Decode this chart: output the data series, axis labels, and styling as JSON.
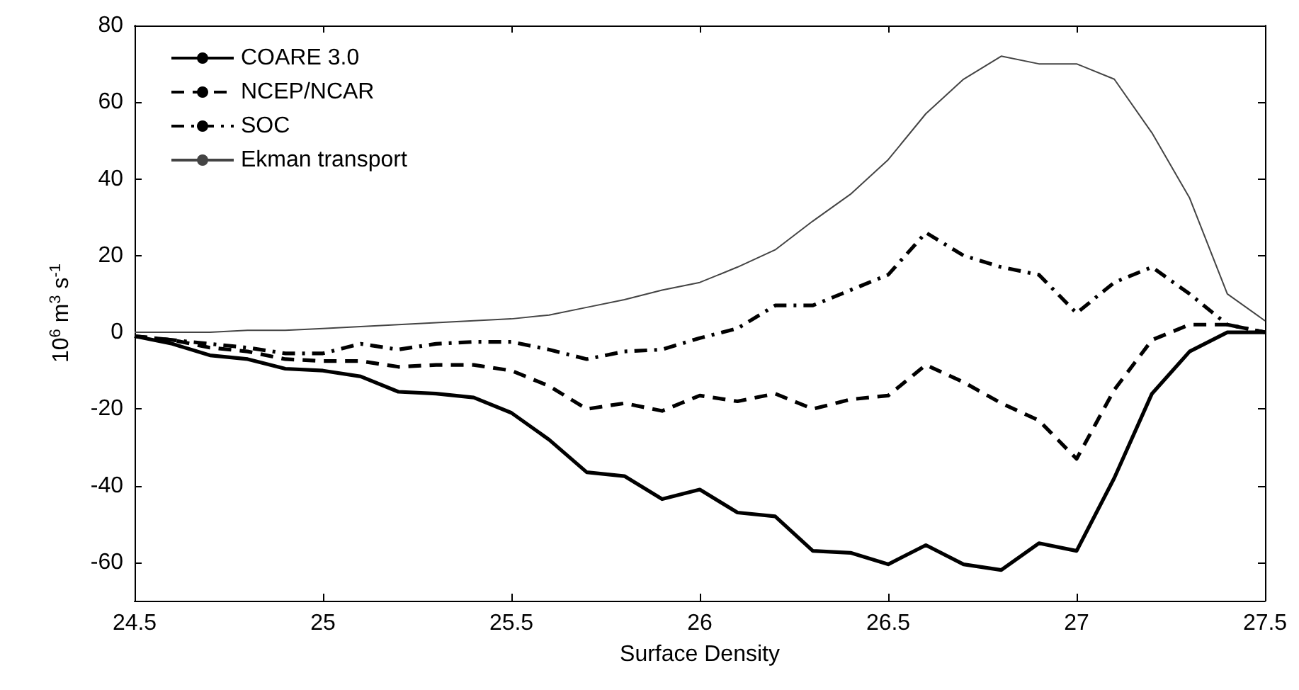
{
  "chart_data": {
    "type": "line",
    "xlabel": "Surface Density",
    "ylabel": "10$^{6}$ m$^{3}$ s$^{-1}$",
    "x": [
      24.5,
      24.6,
      24.7,
      24.8,
      24.9,
      25.0,
      25.1,
      25.2,
      25.3,
      25.4,
      25.5,
      25.6,
      25.7,
      25.8,
      25.9,
      26.0,
      26.1,
      26.2,
      26.3,
      26.4,
      26.5,
      26.6,
      26.7,
      26.8,
      26.9,
      27.0,
      27.1,
      27.2,
      27.3,
      27.4,
      27.5
    ],
    "series": [
      {
        "name": "COARE 3.0",
        "color": "#000000",
        "line_style": "solid",
        "values": [
          -1,
          -3,
          -6,
          -7,
          -9.5,
          -10,
          -11.5,
          -15.5,
          -16,
          -17,
          -21,
          -28,
          -36.5,
          -37.5,
          -43.5,
          -41,
          -47,
          -48,
          -57,
          -57.5,
          -60.5,
          -55.5,
          -60.5,
          -62,
          -55,
          -57,
          -38,
          -16,
          -5,
          0,
          0
        ]
      },
      {
        "name": "NCEP/NCAR",
        "color": "#000000",
        "line_style": "dashed",
        "values": [
          -1,
          -2,
          -4,
          -5,
          -7,
          -7.5,
          -7.5,
          -9,
          -8.5,
          -8.5,
          -10,
          -14,
          -20,
          -18.5,
          -20.5,
          -16.5,
          -18,
          -16,
          -20,
          -17.5,
          -16.5,
          -8.5,
          -13,
          -18.5,
          -23,
          -33,
          -15,
          -2,
          2,
          2,
          0
        ]
      },
      {
        "name": "SOC",
        "color": "#000000",
        "line_style": "dashdot",
        "values": [
          -1,
          -2,
          -3,
          -4,
          -5.5,
          -5.5,
          -3,
          -4.5,
          -3,
          -2.5,
          -2.5,
          -4.5,
          -7,
          -5,
          -4.5,
          -1.5,
          1,
          7,
          7,
          11,
          15,
          26,
          20,
          17,
          15,
          5,
          13,
          17,
          10,
          2,
          0
        ]
      },
      {
        "name": "Ekman transport",
        "color": "#444444",
        "line_style": "solid",
        "values": [
          0,
          0,
          0,
          0.5,
          0.5,
          1,
          1.5,
          2,
          2.5,
          3,
          3.5,
          4.5,
          6.5,
          8.5,
          11,
          13,
          17,
          21.5,
          29,
          36,
          45,
          57,
          66,
          72,
          70,
          70,
          66,
          52,
          35,
          10,
          3
        ]
      }
    ],
    "xlim": [
      24.5,
      27.5
    ],
    "xticks": [
      24.5,
      25,
      25.5,
      26,
      26.5,
      27,
      27.5
    ],
    "ylim": [
      -70,
      80
    ],
    "yticks": [
      -60,
      -40,
      -20,
      0,
      20,
      40,
      60,
      80
    ],
    "grid": false,
    "legend": "top left",
    "marker": "none"
  }
}
